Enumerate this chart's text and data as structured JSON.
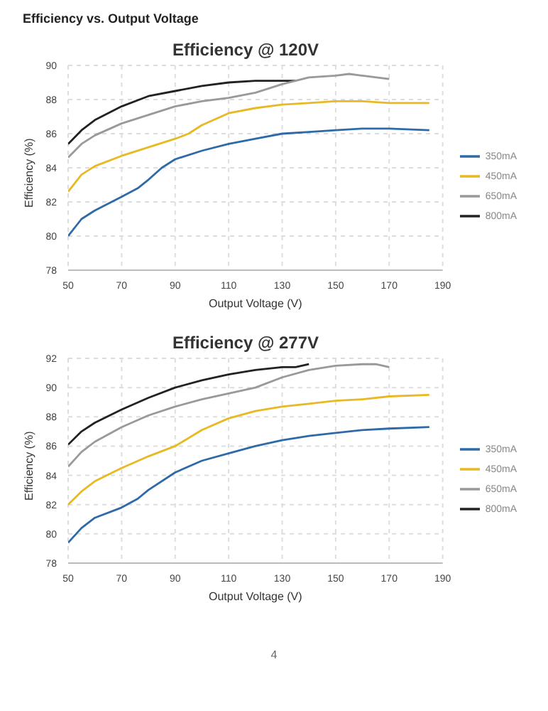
{
  "chart_data": [
    {
      "type": "line",
      "title": "Efficiency @ 120V",
      "annotations": [
        "Efficiency vs. Output Voltage"
      ],
      "xlabel": "Output Voltage (V)",
      "ylabel": "Efficiency (%)",
      "xlim": [
        50,
        190
      ],
      "xticks": [
        50,
        70,
        90,
        110,
        130,
        150,
        170,
        190
      ],
      "ylim": [
        78,
        90
      ],
      "yticks": [
        78,
        80,
        82,
        84,
        86,
        88,
        90
      ],
      "grid": true,
      "legend": "right",
      "series": [
        {
          "name": "800mA",
          "color": "#222222",
          "x": [
            50,
            55,
            60,
            70,
            80,
            90,
            100,
            110,
            120,
            130,
            135
          ],
          "values": [
            85.4,
            86.2,
            86.8,
            87.6,
            88.2,
            88.5,
            88.8,
            89.0,
            89.1,
            89.1,
            89.1
          ]
        },
        {
          "name": "650mA",
          "color": "#999999",
          "x": [
            50,
            55,
            60,
            70,
            80,
            90,
            100,
            110,
            120,
            130,
            140,
            150,
            155,
            160,
            170
          ],
          "values": [
            84.6,
            85.4,
            85.9,
            86.6,
            87.1,
            87.6,
            87.9,
            88.1,
            88.4,
            88.9,
            89.3,
            89.4,
            89.5,
            89.4,
            89.2
          ]
        },
        {
          "name": "450mA",
          "color": "#e8b923",
          "x": [
            50,
            55,
            60,
            70,
            80,
            90,
            95,
            100,
            110,
            120,
            130,
            140,
            150,
            160,
            170,
            185
          ],
          "values": [
            82.6,
            83.6,
            84.1,
            84.7,
            85.2,
            85.7,
            86.0,
            86.5,
            87.2,
            87.5,
            87.7,
            87.8,
            87.9,
            87.9,
            87.8,
            87.8
          ]
        },
        {
          "name": "350mA",
          "color": "#2e6aa8",
          "x": [
            50,
            55,
            60,
            70,
            76,
            80,
            85,
            90,
            100,
            110,
            120,
            130,
            140,
            150,
            160,
            170,
            185
          ],
          "values": [
            80.0,
            81.0,
            81.5,
            82.3,
            82.8,
            83.3,
            84.0,
            84.5,
            85.0,
            85.4,
            85.7,
            86.0,
            86.1,
            86.2,
            86.3,
            86.3,
            86.2
          ]
        }
      ]
    },
    {
      "type": "line",
      "title": "Efficiency @ 277V",
      "annotations": [
        "4"
      ],
      "xlabel": "Output Voltage (V)",
      "ylabel": "Efficiency (%)",
      "xlim": [
        50,
        190
      ],
      "xticks": [
        50,
        70,
        90,
        110,
        130,
        150,
        170,
        190
      ],
      "ylim": [
        78,
        92
      ],
      "yticks": [
        78,
        80,
        82,
        84,
        86,
        88,
        90,
        92
      ],
      "grid": true,
      "legend": "right",
      "series": [
        {
          "name": "800mA",
          "color": "#222222",
          "x": [
            50,
            55,
            60,
            70,
            80,
            90,
            100,
            110,
            120,
            130,
            135,
            140
          ],
          "values": [
            86.1,
            87.0,
            87.6,
            88.5,
            89.3,
            90.0,
            90.5,
            90.9,
            91.2,
            91.4,
            91.4,
            91.6
          ]
        },
        {
          "name": "650mA",
          "color": "#999999",
          "x": [
            50,
            55,
            60,
            70,
            80,
            90,
            100,
            110,
            120,
            130,
            140,
            150,
            160,
            165,
            170
          ],
          "values": [
            84.6,
            85.6,
            86.3,
            87.3,
            88.1,
            88.7,
            89.2,
            89.6,
            90.0,
            90.7,
            91.2,
            91.5,
            91.6,
            91.6,
            91.4
          ]
        },
        {
          "name": "450mA",
          "color": "#e8b923",
          "x": [
            50,
            55,
            60,
            70,
            80,
            90,
            100,
            110,
            120,
            130,
            140,
            150,
            160,
            170,
            185
          ],
          "values": [
            82.0,
            82.9,
            83.6,
            84.5,
            85.3,
            86.0,
            87.1,
            87.9,
            88.4,
            88.7,
            88.9,
            89.1,
            89.2,
            89.4,
            89.5
          ]
        },
        {
          "name": "350mA",
          "color": "#2e6aa8",
          "x": [
            50,
            55,
            60,
            70,
            76,
            80,
            90,
            100,
            110,
            120,
            130,
            140,
            150,
            160,
            170,
            185
          ],
          "values": [
            79.4,
            80.4,
            81.1,
            81.8,
            82.4,
            83.0,
            84.2,
            85.0,
            85.5,
            86.0,
            86.4,
            86.7,
            86.9,
            87.1,
            87.2,
            87.3
          ]
        }
      ]
    }
  ]
}
